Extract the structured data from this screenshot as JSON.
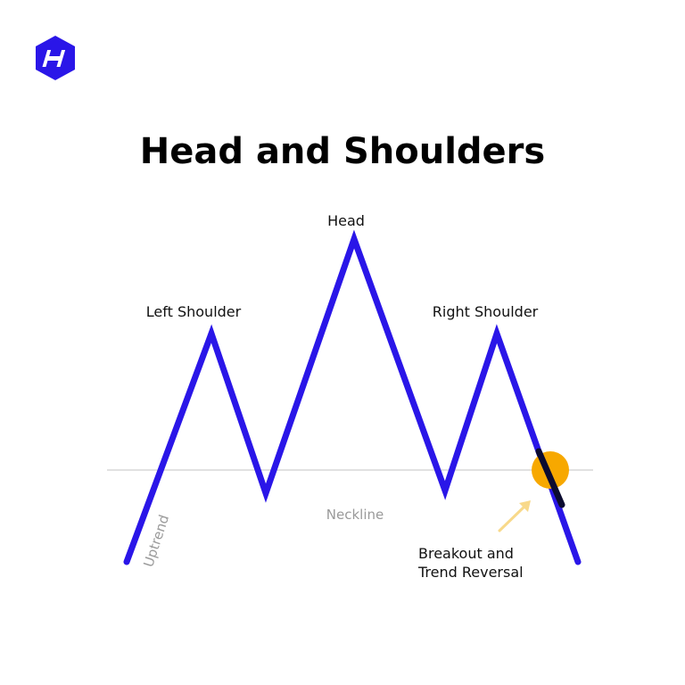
{
  "title": "Head and Shoulders",
  "labels": {
    "head": "Head",
    "left_shoulder": "Left Shoulder",
    "right_shoulder": "Right Shoulder",
    "neckline": "Neckline",
    "uptrend": "Uptrend",
    "breakout_line1": "Breakout and",
    "breakout_line2": "Trend Reversal"
  },
  "icons": {
    "logo": "hexagon-h-logo-icon",
    "arrow": "arrow-up-right-icon"
  },
  "colors": {
    "price_line": "#2a16e8",
    "neckline": "#cfcfcf",
    "breakout_marker": "#f7a800",
    "arrow": "#f8d98a",
    "logo": "#2a16e8",
    "title": "#000000",
    "muted_text": "#9a9a9a"
  }
}
